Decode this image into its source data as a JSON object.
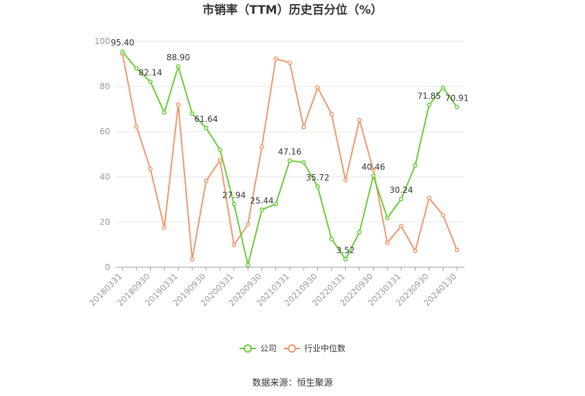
{
  "chart_data": {
    "type": "line",
    "title": "市销率（TTM）历史百分位（%）",
    "xlabel": "",
    "ylabel": "",
    "ylim": [
      0,
      100
    ],
    "yticks": [
      0,
      20,
      40,
      60,
      80,
      100
    ],
    "x": [
      "20180331",
      "20180630",
      "20180930",
      "20181231",
      "20190331",
      "20190630",
      "20190930",
      "20191231",
      "20200331",
      "20200630",
      "20200930",
      "20201231",
      "20210331",
      "20210630",
      "20210930",
      "20211231",
      "20220331",
      "20220630",
      "20220930",
      "20221231",
      "20230331",
      "20230630",
      "20230930",
      "20231231",
      "20240130"
    ],
    "xtick_labels": [
      "20180331",
      "20180930",
      "20190331",
      "20190930",
      "20200331",
      "20200930",
      "20210331",
      "20210930",
      "20220331",
      "20220930",
      "20230331",
      "20230930",
      "20240130"
    ],
    "series": [
      {
        "name": "公司",
        "color": "#66cc33",
        "values": [
          95.4,
          88.0,
          82.14,
          68.5,
          88.9,
          68.0,
          61.64,
          52.0,
          27.94,
          1.0,
          25.44,
          28.0,
          47.16,
          46.4,
          35.72,
          12.5,
          3.52,
          15.5,
          40.46,
          21.8,
          30.24,
          45.0,
          71.85,
          79.5,
          70.91
        ],
        "labels": {
          "0": "95.40",
          "2": "82.14",
          "4": "88.90",
          "6": "61.64",
          "8": "27.94",
          "10": "25.44",
          "12": "47.16",
          "14": "35.72",
          "16": "3.52",
          "18": "40.46",
          "20": "30.24",
          "22": "71.85",
          "24": "70.91"
        }
      },
      {
        "name": "行业中位数",
        "color": "#f4946b",
        "values": [
          94.5,
          62.3,
          43.5,
          17.5,
          72.0,
          3.5,
          38.2,
          47.3,
          9.8,
          19.0,
          53.3,
          92.3,
          90.5,
          62.0,
          79.6,
          67.8,
          38.5,
          65.2,
          43.0,
          10.8,
          18.2,
          7.2,
          30.6,
          23.0,
          7.6
        ]
      }
    ],
    "grid": true,
    "legend_position": "bottom",
    "source": "数据来源：恒生聚源"
  }
}
